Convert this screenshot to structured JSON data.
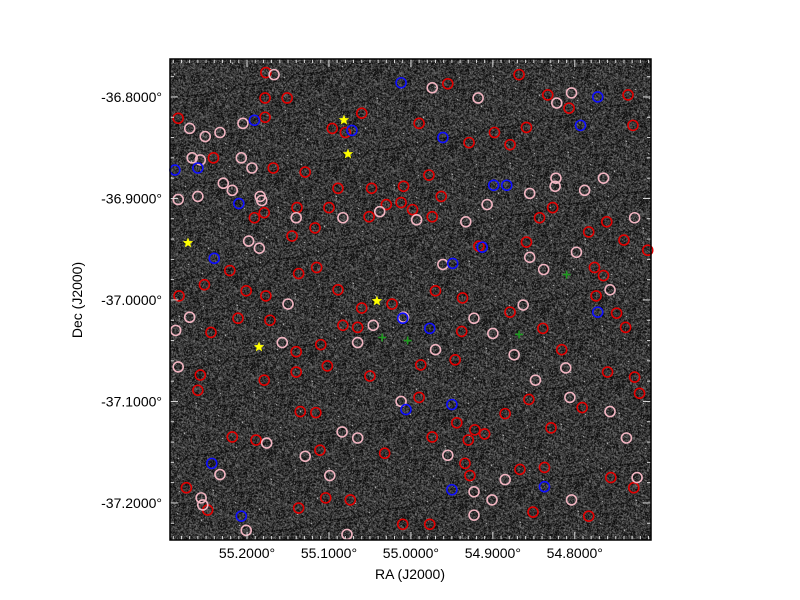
{
  "chart_data": {
    "type": "scatter",
    "title": "",
    "xlabel": "RA (J2000)",
    "ylabel": "Dec (J2000)",
    "xlim": [
      55.294,
      54.707
    ],
    "ylim": [
      -37.2365,
      -36.7626
    ],
    "x_inverted": true,
    "background": "greyscale sky image",
    "grid": false,
    "x_ticks": [
      55.2,
      55.1,
      55.0,
      54.9,
      54.8
    ],
    "x_tick_labels": [
      "55.2000°",
      "55.1000°",
      "55.0000°",
      "54.9000°",
      "54.8000°"
    ],
    "y_ticks": [
      -36.8,
      -36.9,
      -37.0,
      -37.1,
      -37.2
    ],
    "y_tick_labels": [
      "-36.8000°",
      "-36.9000°",
      "-37.0000°",
      "-37.1000°",
      "-37.2000°"
    ],
    "colors": {
      "red": "#e00000",
      "pink": "#f2b6c2",
      "blue": "#1010ff",
      "green": "#1f9a1f",
      "yellow": "#ffff00"
    },
    "series": [
      {
        "marker": "circle",
        "color": "red",
        "points": [
          [
            55.177,
            -36.776
          ],
          [
            55.178,
            -36.801
          ],
          [
            55.151,
            -36.801
          ],
          [
            55.284,
            -36.821
          ],
          [
            55.096,
            -36.831
          ],
          [
            55.178,
            -36.82
          ],
          [
            55.08,
            -36.835
          ],
          [
            55.06,
            -36.816
          ],
          [
            54.99,
            -36.826
          ],
          [
            54.929,
            -36.845
          ],
          [
            54.955,
            -36.787
          ],
          [
            54.868,
            -36.778
          ],
          [
            54.833,
            -36.798
          ],
          [
            54.807,
            -36.811
          ],
          [
            54.735,
            -36.798
          ],
          [
            54.729,
            -36.828
          ],
          [
            54.898,
            -36.835
          ],
          [
            54.879,
            -36.847
          ],
          [
            54.859,
            -36.83
          ],
          [
            55.241,
            -36.86
          ],
          [
            55.168,
            -36.87
          ],
          [
            55.129,
            -36.874
          ],
          [
            55.089,
            -36.89
          ],
          [
            55.048,
            -36.89
          ],
          [
            55.03,
            -36.906
          ],
          [
            55.009,
            -36.888
          ],
          [
            54.978,
            -36.877
          ],
          [
            54.963,
            -36.898
          ],
          [
            55.012,
            -36.904
          ],
          [
            55.139,
            -36.909
          ],
          [
            55.179,
            -36.914
          ],
          [
            55.117,
            -36.929
          ],
          [
            55.1,
            -36.909
          ],
          [
            55.191,
            -36.919
          ],
          [
            55.145,
            -36.937
          ],
          [
            55.051,
            -36.918
          ],
          [
            54.974,
            -36.918
          ],
          [
            54.917,
            -36.947
          ],
          [
            54.859,
            -36.943
          ],
          [
            54.843,
            -36.919
          ],
          [
            54.827,
            -36.909
          ],
          [
            54.783,
            -36.933
          ],
          [
            54.74,
            -36.941
          ],
          [
            54.776,
            -36.968
          ],
          [
            54.765,
            -36.976
          ],
          [
            55.221,
            -36.971
          ],
          [
            55.201,
            -36.991
          ],
          [
            55.252,
            -36.985
          ],
          [
            55.177,
            -36.996
          ],
          [
            55.283,
            -36.996
          ],
          [
            55.137,
            -36.974
          ],
          [
            55.115,
            -36.968
          ],
          [
            55.089,
            -36.99
          ],
          [
            55.06,
            -37.008
          ],
          [
            55.083,
            -37.025
          ],
          [
            55.065,
            -37.027
          ],
          [
            55.172,
            -37.02
          ],
          [
            55.211,
            -37.018
          ],
          [
            55.244,
            -37.032
          ],
          [
            55.14,
            -37.051
          ],
          [
            55.11,
            -37.044
          ],
          [
            55.14,
            -37.071
          ],
          [
            55.102,
            -37.065
          ],
          [
            55.05,
            -37.075
          ],
          [
            55.257,
            -37.074
          ],
          [
            55.26,
            -37.089
          ],
          [
            55.179,
            -37.079
          ],
          [
            55.135,
            -37.11
          ],
          [
            55.116,
            -37.111
          ],
          [
            54.99,
            -37.096
          ],
          [
            54.944,
            -37.121
          ],
          [
            54.922,
            -37.128
          ],
          [
            54.885,
            -37.112
          ],
          [
            54.856,
            -37.098
          ],
          [
            54.829,
            -37.126
          ],
          [
            54.791,
            -37.106
          ],
          [
            54.76,
            -37.071
          ],
          [
            54.727,
            -37.076
          ],
          [
            54.721,
            -37.092
          ],
          [
            55.218,
            -37.135
          ],
          [
            55.189,
            -37.138
          ],
          [
            55.111,
            -37.148
          ],
          [
            55.032,
            -37.151
          ],
          [
            54.974,
            -37.135
          ],
          [
            54.93,
            -37.138
          ],
          [
            54.91,
            -37.132
          ],
          [
            54.934,
            -37.161
          ],
          [
            54.928,
            -37.173
          ],
          [
            54.867,
            -37.167
          ],
          [
            54.837,
            -37.165
          ],
          [
            54.756,
            -37.175
          ],
          [
            55.274,
            -37.185
          ],
          [
            55.248,
            -37.207
          ],
          [
            55.137,
            -37.205
          ],
          [
            55.104,
            -37.195
          ],
          [
            55.074,
            -37.197
          ],
          [
            55.01,
            -37.221
          ],
          [
            54.977,
            -37.221
          ],
          [
            54.851,
            -37.209
          ],
          [
            54.783,
            -37.213
          ],
          [
            54.728,
            -37.185
          ],
          [
            54.711,
            -36.951
          ],
          [
            54.761,
            -36.923
          ],
          [
            54.749,
            -37.013
          ],
          [
            54.738,
            -37.027
          ],
          [
            54.774,
            -36.996
          ],
          [
            54.839,
            -37.028
          ],
          [
            54.879,
            -37.012
          ],
          [
            54.816,
            -37.049
          ],
          [
            54.938,
            -37.031
          ],
          [
            54.988,
            -37.064
          ],
          [
            54.946,
            -37.059
          ],
          [
            54.97,
            -36.991
          ],
          [
            54.937,
            -36.998
          ],
          [
            54.998,
            -36.911
          ],
          [
            55.023,
            -37.004
          ]
        ]
      },
      {
        "marker": "circle",
        "color": "pink",
        "points": [
          [
            55.167,
            -36.778
          ],
          [
            54.974,
            -36.791
          ],
          [
            54.918,
            -36.801
          ],
          [
            54.822,
            -36.806
          ],
          [
            54.804,
            -36.796
          ],
          [
            55.27,
            -36.831
          ],
          [
            55.251,
            -36.839
          ],
          [
            55.267,
            -36.86
          ],
          [
            55.257,
            -36.862
          ],
          [
            55.233,
            -36.835
          ],
          [
            55.205,
            -36.826
          ],
          [
            55.207,
            -36.86
          ],
          [
            55.194,
            -36.87
          ],
          [
            55.184,
            -36.898
          ],
          [
            55.182,
            -36.902
          ],
          [
            55.284,
            -36.901
          ],
          [
            55.229,
            -36.885
          ],
          [
            55.218,
            -36.892
          ],
          [
            55.26,
            -36.898
          ],
          [
            55.198,
            -36.942
          ],
          [
            55.185,
            -36.949
          ],
          [
            55.14,
            -36.919
          ],
          [
            55.083,
            -36.919
          ],
          [
            55.038,
            -36.913
          ],
          [
            54.993,
            -36.921
          ],
          [
            54.933,
            -36.923
          ],
          [
            54.907,
            -36.906
          ],
          [
            54.855,
            -36.895
          ],
          [
            54.823,
            -36.88
          ],
          [
            54.824,
            -36.888
          ],
          [
            54.765,
            -36.88
          ],
          [
            54.788,
            -36.892
          ],
          [
            54.727,
            -36.919
          ],
          [
            54.798,
            -36.953
          ],
          [
            54.838,
            -36.97
          ],
          [
            54.863,
            -37.005
          ],
          [
            54.923,
            -37.018
          ],
          [
            54.9,
            -37.033
          ],
          [
            54.874,
            -37.054
          ],
          [
            55.046,
            -37.025
          ],
          [
            55.065,
            -37.042
          ],
          [
            54.97,
            -37.049
          ],
          [
            55.15,
            -37.004
          ],
          [
            55.157,
            -37.042
          ],
          [
            55.27,
            -37.017
          ],
          [
            55.287,
            -37.03
          ],
          [
            55.284,
            -37.066
          ],
          [
            55.176,
            -37.141
          ],
          [
            55.129,
            -37.154
          ],
          [
            55.099,
            -37.173
          ],
          [
            55.084,
            -37.13
          ],
          [
            55.065,
            -37.136
          ],
          [
            55.012,
            -37.1
          ],
          [
            54.955,
            -37.153
          ],
          [
            54.923,
            -37.189
          ],
          [
            54.885,
            -37.177
          ],
          [
            54.901,
            -37.197
          ],
          [
            54.804,
            -37.197
          ],
          [
            54.848,
            -37.079
          ],
          [
            54.806,
            -37.096
          ],
          [
            54.757,
            -37.11
          ],
          [
            54.737,
            -37.136
          ],
          [
            54.724,
            -37.175
          ],
          [
            55.233,
            -37.172
          ],
          [
            55.256,
            -37.195
          ],
          [
            55.254,
            -37.202
          ],
          [
            55.201,
            -37.227
          ],
          [
            55.078,
            -37.231
          ],
          [
            54.923,
            -37.212
          ],
          [
            55.009,
            -37.017
          ],
          [
            54.961,
            -36.965
          ],
          [
            54.855,
            -36.958
          ],
          [
            54.757,
            -36.99
          ],
          [
            54.811,
            -37.067
          ]
        ]
      },
      {
        "marker": "circle",
        "color": "blue",
        "points": [
          [
            55.012,
            -36.786
          ],
          [
            54.772,
            -36.8
          ],
          [
            55.191,
            -36.823
          ],
          [
            55.072,
            -36.833
          ],
          [
            54.961,
            -36.84
          ],
          [
            55.26,
            -36.87
          ],
          [
            54.899,
            -36.887
          ],
          [
            54.883,
            -36.887
          ],
          [
            55.21,
            -36.905
          ],
          [
            54.913,
            -36.948
          ],
          [
            55.24,
            -36.959
          ],
          [
            54.949,
            -36.964
          ],
          [
            54.772,
            -37.012
          ],
          [
            55.01,
            -37.018
          ],
          [
            54.977,
            -37.028
          ],
          [
            55.006,
            -37.108
          ],
          [
            54.95,
            -37.103
          ],
          [
            55.243,
            -37.161
          ],
          [
            54.837,
            -37.184
          ],
          [
            54.95,
            -37.187
          ],
          [
            55.207,
            -37.213
          ],
          [
            54.793,
            -36.828
          ],
          [
            55.288,
            -36.872
          ]
        ]
      },
      {
        "marker": "plus",
        "color": "green",
        "points": [
          [
            54.81,
            -36.975
          ],
          [
            55.004,
            -37.04
          ],
          [
            54.868,
            -37.034
          ],
          [
            55.035,
            -37.037
          ]
        ]
      },
      {
        "marker": "star",
        "color": "yellow",
        "points": [
          [
            55.0817,
            -36.8227
          ],
          [
            55.0768,
            -36.8562
          ],
          [
            55.272,
            -36.9438
          ],
          [
            55.0415,
            -37.001
          ],
          [
            55.1854,
            -37.0463
          ]
        ]
      }
    ]
  }
}
